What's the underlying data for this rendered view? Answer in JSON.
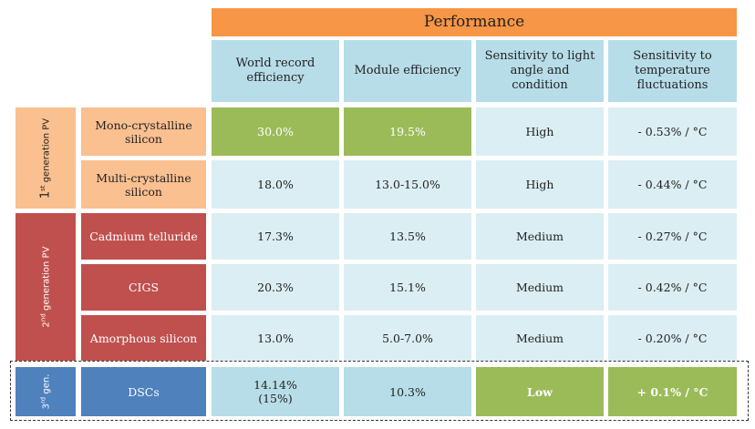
{
  "header": {
    "title": "Performance"
  },
  "columns": [
    "World record efficiency",
    "Module efficiency",
    "Sensitivity to light angle and condition",
    "Sensitivity to temperature fluctuations"
  ],
  "generations": [
    {
      "label_num": "1",
      "label_sup": "st",
      "label_text": " generation PV"
    },
    {
      "label_num": "2",
      "label_sup": "nd",
      "label_text": " generation PV"
    },
    {
      "label_num": "3",
      "label_sup": "rd",
      "label_text": " gen."
    }
  ],
  "rows": [
    {
      "technology": "Mono-crystalline silicon",
      "world_record": "30.0%",
      "module": "19.5%",
      "light": "High",
      "temperature": "- 0.53% / °C"
    },
    {
      "technology": "Multi-crystalline silicon",
      "world_record": "18.0%",
      "module": "13.0-15.0%",
      "light": "High",
      "temperature": "- 0.44% / °C"
    },
    {
      "technology": "Cadmium telluride",
      "world_record": "17.3%",
      "module": "13.5%",
      "light": "Medium",
      "temperature": "- 0.27% / °C"
    },
    {
      "technology": "CIGS",
      "world_record": "20.3%",
      "module": "15.1%",
      "light": "Medium",
      "temperature": "- 0.42% / °C"
    },
    {
      "technology": "Amorphous silicon",
      "world_record": "13.0%",
      "module": "5.0-7.0%",
      "light": "Medium",
      "temperature": "- 0.20% / °C"
    },
    {
      "technology": "DSCs",
      "world_record": "14.14% (15%)",
      "module": "10.3%",
      "light": "Low",
      "temperature": "+ 0.1% / °C"
    }
  ],
  "colors": {
    "header_orange": "#f79646",
    "header_blue": "#b7dde8",
    "gen1": "#fac090",
    "gen2": "#c0504d",
    "gen3": "#4f81bd",
    "highlight_green": "#9bbb59",
    "cell_light": "#dbeef3"
  }
}
